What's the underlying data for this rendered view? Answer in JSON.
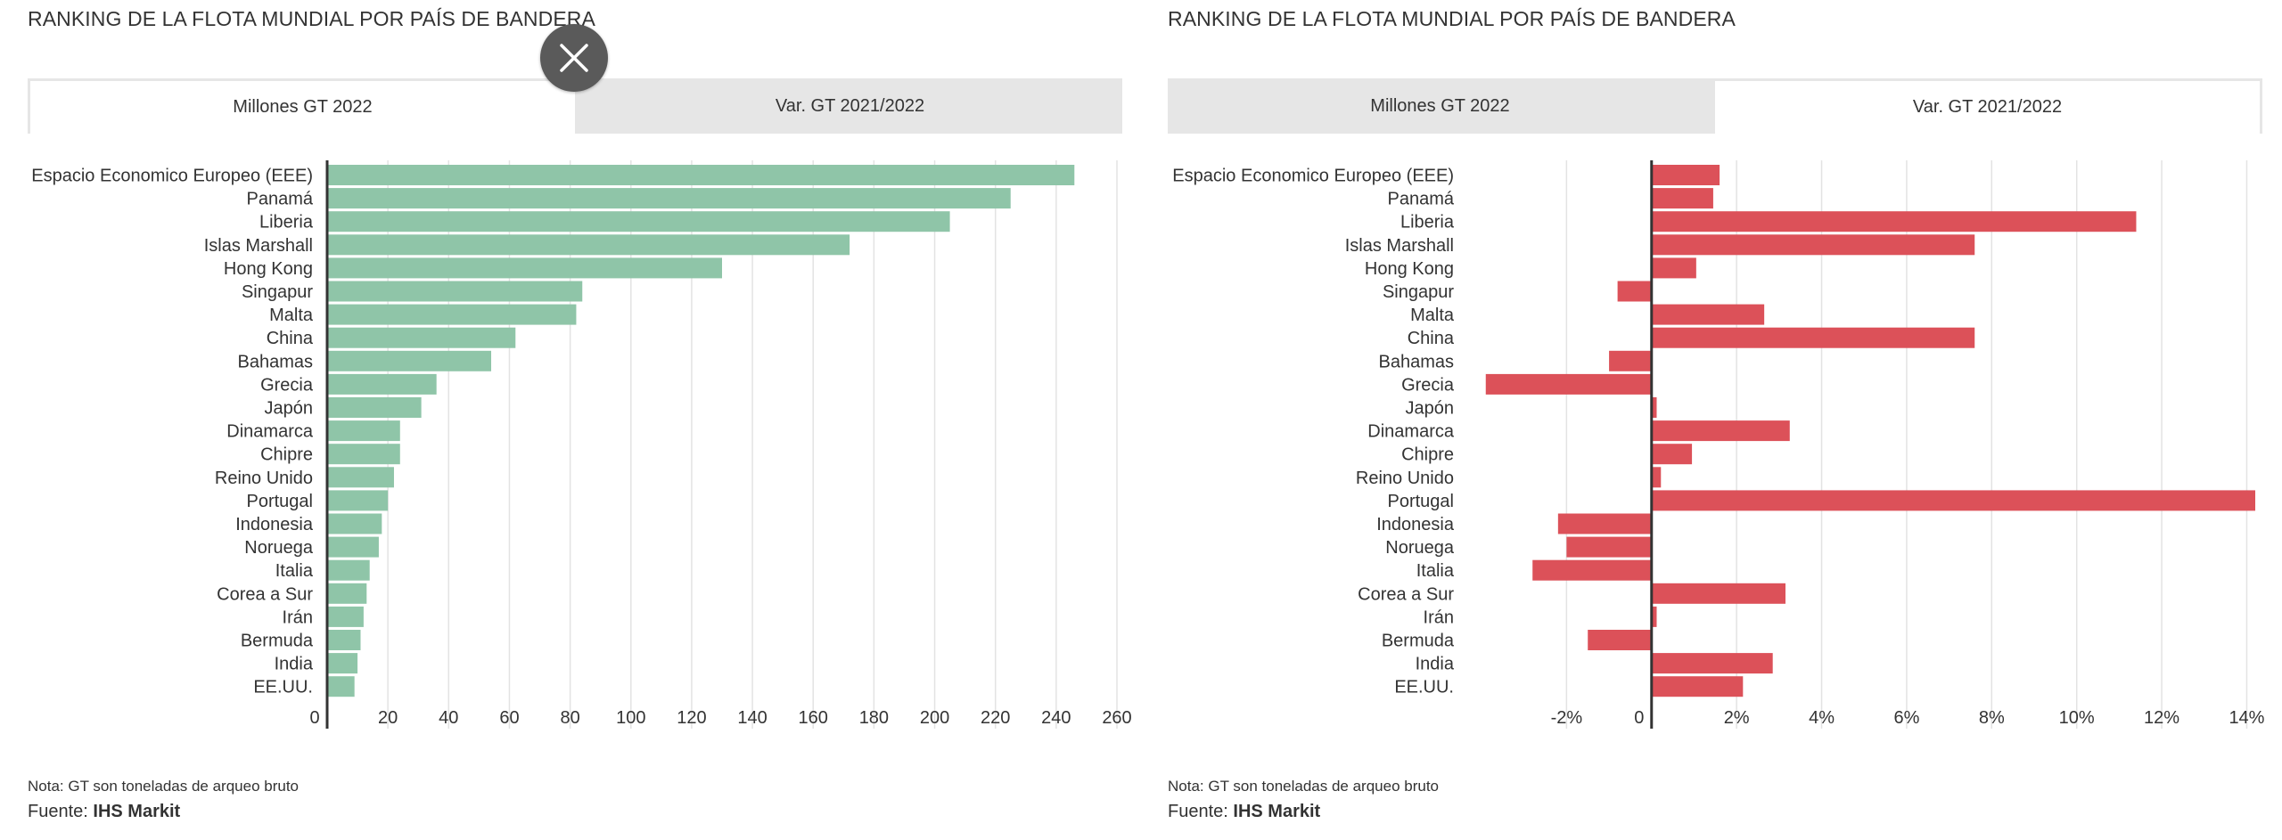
{
  "close_icon": "close-icon",
  "colors": {
    "green": "#8fc5a8",
    "red": "#dc5159",
    "grid": "#e3e3e3",
    "axis": "#333333"
  },
  "chart_data": [
    {
      "type": "bar",
      "orientation": "horizontal",
      "title": "RANKING DE LA FLOTA MUNDIAL POR PAÍS DE BANDERA",
      "tabs": [
        {
          "label": "Millones GT 2022",
          "active": true
        },
        {
          "label": "Var. GT 2021/2022",
          "active": false
        }
      ],
      "categories": [
        "Espacio Economico Europeo (EEE)",
        "Panamá",
        "Liberia",
        "Islas Marshall",
        "Hong Kong",
        "Singapur",
        "Malta",
        "China",
        "Bahamas",
        "Grecia",
        "Japón",
        "Dinamarca",
        "Chipre",
        "Reino Unido",
        "Portugal",
        "Indonesia",
        "Noruega",
        "Italia",
        "Corea a Sur",
        "Irán",
        "Bermuda",
        "India",
        "EE.UU."
      ],
      "values": [
        246,
        225,
        205,
        172,
        130,
        84,
        82,
        62,
        54,
        36,
        31,
        24,
        24,
        22,
        20,
        18,
        17,
        14,
        13,
        12,
        11,
        10,
        9
      ],
      "xlim": [
        0,
        260
      ],
      "ticks": [
        0,
        20,
        40,
        60,
        80,
        100,
        120,
        140,
        160,
        180,
        200,
        220,
        240,
        260
      ],
      "tick_labels": [
        "0",
        "20",
        "40",
        "60",
        "80",
        "100",
        "120",
        "140",
        "160",
        "180",
        "200",
        "220",
        "240",
        "260"
      ],
      "color": "#8fc5a8",
      "note": "Nota: GT son toneladas de arqueo bruto",
      "source_label": "Fuente:",
      "source_value": "IHS Markit"
    },
    {
      "type": "bar",
      "orientation": "horizontal",
      "title": "RANKING DE LA FLOTA MUNDIAL POR PAÍS DE BANDERA",
      "tabs": [
        {
          "label": "Millones GT 2022",
          "active": false
        },
        {
          "label": "Var. GT 2021/2022",
          "active": true
        }
      ],
      "categories": [
        "Espacio Economico Europeo (EEE)",
        "Panamá",
        "Liberia",
        "Islas Marshall",
        "Hong Kong",
        "Singapur",
        "Malta",
        "China",
        "Bahamas",
        "Grecia",
        "Japón",
        "Dinamarca",
        "Chipre",
        "Reino Unido",
        "Portugal",
        "Indonesia",
        "Noruega",
        "Italia",
        "Corea a Sur",
        "Irán",
        "Bermuda",
        "India",
        "EE.UU."
      ],
      "values": [
        1.6,
        1.45,
        11.4,
        7.6,
        1.05,
        -0.8,
        2.65,
        7.6,
        -1.0,
        -3.9,
        0.12,
        3.25,
        0.95,
        0.22,
        14.2,
        -2.2,
        -2.0,
        -2.8,
        3.15,
        0.12,
        -1.5,
        2.85,
        2.15
      ],
      "xlim": [
        -4,
        14.2
      ],
      "ticks": [
        -2,
        0,
        2,
        4,
        6,
        8,
        10,
        12,
        14
      ],
      "tick_labels": [
        "-2%",
        "0",
        "2%",
        "4%",
        "6%",
        "8%",
        "10%",
        "12%",
        "14%"
      ],
      "color": "#dc5159",
      "note": "Nota: GT son toneladas de arqueo bruto",
      "source_label": "Fuente:",
      "source_value": "IHS Markit"
    }
  ]
}
